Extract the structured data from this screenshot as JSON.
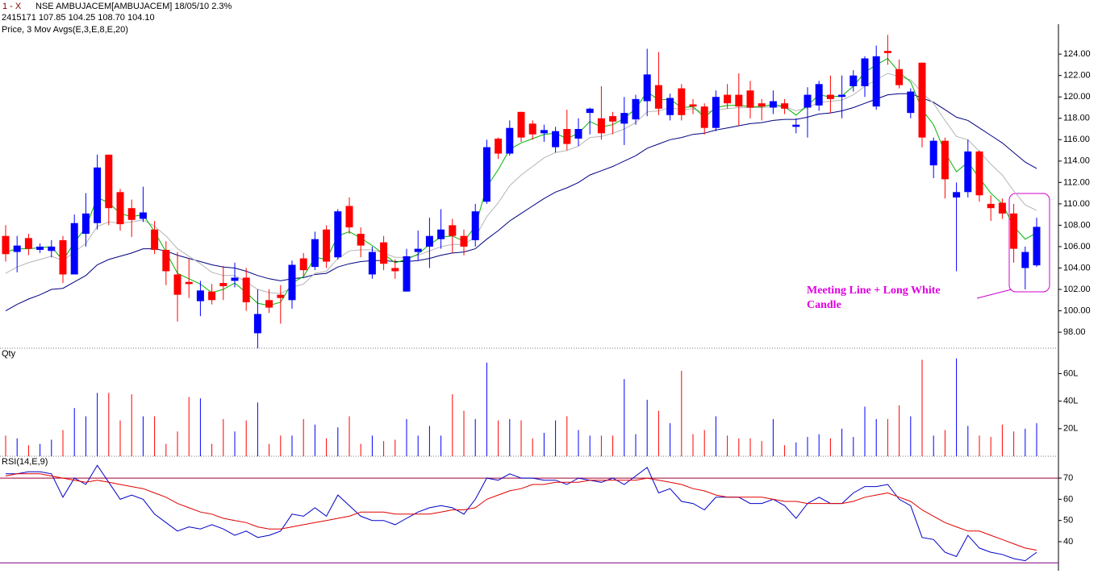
{
  "header": {
    "tab": "1 - X",
    "symbol": "NSE AMBUJACEM[AMBUJACEM] 18/05/10  2.3%",
    "quote": "2415171 107.85 104.25 108.70 104.10"
  },
  "annotation": "Meeting Line + Long White Candle",
  "chart_data": [
    {
      "type": "candlestick",
      "title": "Price, 3 Mov Avgs(E,3,E,8,E,20)",
      "up_color": "#0000ff",
      "down_color": "#ff0000",
      "open": [
        107.0,
        105.5,
        106.8,
        105.7,
        105.6,
        106.6,
        103.4,
        107.2,
        108.2,
        114.6,
        111.1,
        109.6,
        108.6,
        107.6,
        105.7,
        103.4,
        102.7,
        100.9,
        101.8,
        102.6,
        102.8,
        103.1,
        97.9,
        101.0,
        101.5,
        101.0,
        104.9,
        104.1,
        107.6,
        105.0,
        109.8,
        107.2,
        103.4,
        106.4,
        104.0,
        101.8,
        105.5,
        106.0,
        106.7,
        108.0,
        107.0,
        106.6,
        110.2,
        116.1,
        114.7,
        118.6,
        117.5,
        116.6,
        115.3,
        117.0,
        116.1,
        118.5,
        118.0,
        118.2,
        117.5,
        117.9,
        119.6,
        121.1,
        118.3,
        120.8,
        119.3,
        119.1,
        117.1,
        120.2,
        120.2,
        120.6,
        119.4,
        119.0,
        119.4,
        117.2,
        119.0,
        119.2,
        120.2,
        120.0,
        121.0,
        121.0,
        119.1,
        124.3,
        122.6,
        118.5,
        123.2,
        113.6,
        115.9,
        110.6,
        111.1,
        114.9,
        110.0,
        110.1,
        109.1,
        104.0,
        104.25
      ],
      "high": [
        108.0,
        107.0,
        107.2,
        106.3,
        106.6,
        107.0,
        109.0,
        111.0,
        114.6,
        114.6,
        111.4,
        110.4,
        111.6,
        108.4,
        106.5,
        105.5,
        104.9,
        102.8,
        102.5,
        104.2,
        104.5,
        104.0,
        102.0,
        102.0,
        102.4,
        104.7,
        105.4,
        107.4,
        108.0,
        109.5,
        110.6,
        107.8,
        106.0,
        107.0,
        104.8,
        105.8,
        107.5,
        108.7,
        109.5,
        108.6,
        107.6,
        110.0,
        116.0,
        116.2,
        117.8,
        118.6,
        117.8,
        117.4,
        117.2,
        118.8,
        118.0,
        119.0,
        121.0,
        118.6,
        120.0,
        120.2,
        124.5,
        124.2,
        120.3,
        121.2,
        119.8,
        119.4,
        120.6,
        121.2,
        122.2,
        121.5,
        119.8,
        120.6,
        119.8,
        118.0,
        120.9,
        121.5,
        122.0,
        122.0,
        122.5,
        123.8,
        124.8,
        125.8,
        123.5,
        120.8,
        123.2,
        116.2,
        116.2,
        112.0,
        116.0,
        115.0,
        110.8,
        110.5,
        110.0,
        106.0,
        108.7
      ],
      "low": [
        104.6,
        103.6,
        105.2,
        105.4,
        105.0,
        102.6,
        103.4,
        106.0,
        107.6,
        108.0,
        107.5,
        106.9,
        108.3,
        105.3,
        102.4,
        99.0,
        101.2,
        99.5,
        100.6,
        101.0,
        102.2,
        100.0,
        96.5,
        99.8,
        98.8,
        100.2,
        103.2,
        103.8,
        104.0,
        104.8,
        107.2,
        105.0,
        103.0,
        103.8,
        103.0,
        101.8,
        104.7,
        104.0,
        105.8,
        105.4,
        105.2,
        106.0,
        110.0,
        114.2,
        114.5,
        115.8,
        116.0,
        115.8,
        114.8,
        115.0,
        115.4,
        116.5,
        116.0,
        116.5,
        115.5,
        117.4,
        118.2,
        118.3,
        117.8,
        117.8,
        118.4,
        116.5,
        116.8,
        118.9,
        117.3,
        118.0,
        117.8,
        118.4,
        118.4,
        116.6,
        116.2,
        118.7,
        118.5,
        118.0,
        120.5,
        120.0,
        118.8,
        123.0,
        120.8,
        118.0,
        115.3,
        112.4,
        110.5,
        103.7,
        110.6,
        110.2,
        108.4,
        108.6,
        104.5,
        102.0,
        104.1
      ],
      "close": [
        105.3,
        106.1,
        105.8,
        106.0,
        106.0,
        103.4,
        108.2,
        109.1,
        113.4,
        109.6,
        108.1,
        108.5,
        109.2,
        105.7,
        103.7,
        101.5,
        102.5,
        101.9,
        101.0,
        102.3,
        103.1,
        100.8,
        99.7,
        100.3,
        101.2,
        104.3,
        103.8,
        106.7,
        104.6,
        109.3,
        107.8,
        106.1,
        105.5,
        104.4,
        103.7,
        105.1,
        105.8,
        107.0,
        107.6,
        107.0,
        106.0,
        109.3,
        115.3,
        114.7,
        117.1,
        116.2,
        116.5,
        116.9,
        116.8,
        115.6,
        117.0,
        118.9,
        116.6,
        117.7,
        118.5,
        119.8,
        122.1,
        118.9,
        119.9,
        118.3,
        119.1,
        117.1,
        120.0,
        119.4,
        119.1,
        119.0,
        119.1,
        119.6,
        118.9,
        117.4,
        120.2,
        121.2,
        119.8,
        120.2,
        122.0,
        123.6,
        123.8,
        124.1,
        121.1,
        120.5,
        116.2,
        115.9,
        112.3,
        111.1,
        114.9,
        110.8,
        109.6,
        109.1,
        105.8,
        105.5,
        107.85
      ],
      "series": [
        {
          "color": "#00b400",
          "values": [
            105.5,
            105.8,
            105.8,
            105.9,
            106.0,
            104.7,
            106.4,
            107.8,
            110.6,
            110.1,
            109.1,
            108.8,
            109.0,
            107.4,
            105.5,
            103.5,
            103.0,
            102.5,
            101.7,
            102.0,
            102.6,
            101.7,
            100.7,
            100.5,
            100.8,
            102.6,
            103.2,
            105.0,
            104.8,
            107.0,
            107.4,
            106.8,
            106.1,
            105.3,
            104.5,
            104.8,
            105.3,
            106.2,
            106.9,
            107.0,
            106.5,
            107.9,
            111.6,
            113.2,
            115.1,
            115.7,
            116.1,
            116.5,
            116.6,
            116.1,
            116.6,
            117.7,
            117.2,
            117.4,
            118.0,
            118.9,
            120.5,
            119.7,
            119.8,
            119.0,
            119.1,
            118.1,
            119.0,
            119.2,
            119.2,
            119.1,
            119.1,
            119.3,
            119.1,
            118.3,
            119.2,
            120.2,
            120.0,
            120.1,
            121.0,
            122.3,
            123.0,
            123.6,
            122.3,
            121.4,
            118.8,
            117.4,
            114.8,
            113.0,
            113.9,
            112.4,
            111.0,
            110.0,
            107.9,
            106.7,
            107.3
          ]
        },
        {
          "color": "#b4b4b4",
          "values": [
            103.5,
            104.1,
            104.5,
            104.8,
            105.1,
            104.7,
            105.5,
            106.3,
            107.9,
            108.3,
            108.2,
            108.3,
            108.5,
            107.9,
            107.0,
            105.8,
            105.1,
            104.4,
            103.6,
            103.3,
            103.3,
            102.7,
            102.0,
            101.7,
            101.6,
            102.2,
            102.5,
            103.5,
            103.7,
            104.9,
            105.6,
            105.7,
            105.7,
            105.4,
            105.0,
            105.0,
            105.2,
            105.6,
            106.0,
            106.2,
            106.2,
            106.9,
            108.8,
            110.1,
            111.7,
            112.7,
            113.5,
            114.3,
            114.8,
            115.0,
            115.4,
            116.2,
            116.3,
            116.6,
            117.0,
            117.6,
            118.6,
            118.7,
            119.0,
            118.8,
            118.9,
            118.5,
            118.8,
            118.9,
            119.0,
            119.0,
            119.0,
            119.1,
            119.1,
            118.7,
            119.0,
            119.5,
            119.6,
            119.7,
            120.2,
            121.0,
            121.6,
            122.2,
            121.9,
            121.6,
            120.4,
            119.4,
            117.8,
            116.3,
            116.0,
            114.9,
            113.7,
            112.7,
            111.2,
            109.9,
            109.4
          ]
        },
        {
          "color": "#000080",
          "values": [
            100.0,
            100.6,
            101.1,
            101.5,
            102.0,
            102.1,
            102.7,
            103.3,
            104.3,
            104.8,
            105.1,
            105.4,
            105.8,
            105.8,
            105.6,
            105.2,
            104.9,
            104.6,
            104.3,
            104.1,
            104.0,
            103.7,
            103.3,
            103.0,
            102.8,
            103.0,
            103.1,
            103.4,
            103.5,
            104.1,
            104.4,
            104.6,
            104.7,
            104.7,
            104.6,
            104.6,
            104.7,
            104.9,
            105.2,
            105.4,
            105.5,
            105.8,
            106.7,
            107.5,
            108.4,
            109.1,
            109.8,
            110.5,
            111.1,
            111.5,
            112.0,
            112.7,
            113.1,
            113.5,
            114.0,
            114.5,
            115.2,
            115.6,
            116.0,
            116.2,
            116.5,
            116.6,
            116.9,
            117.1,
            117.3,
            117.5,
            117.6,
            117.8,
            117.9,
            117.9,
            118.1,
            118.4,
            118.5,
            118.7,
            119.0,
            119.4,
            119.8,
            120.2,
            120.3,
            120.3,
            119.9,
            119.5,
            118.8,
            118.1,
            117.8,
            117.1,
            116.4,
            115.7,
            114.8,
            113.9,
            113.3
          ]
        }
      ],
      "ylim": [
        96.5,
        126.8
      ],
      "yticks": [
        {
          "value": 98,
          "label": "98.00"
        },
        {
          "value": 100,
          "label": "100.00"
        },
        {
          "value": 102,
          "label": "102.00"
        },
        {
          "value": 104,
          "label": "104.00"
        },
        {
          "value": 106,
          "label": "106.00"
        },
        {
          "value": 108,
          "label": "108.00"
        },
        {
          "value": 110,
          "label": "110.00"
        },
        {
          "value": 112,
          "label": "112.00"
        },
        {
          "value": 114,
          "label": "114.00"
        },
        {
          "value": 116,
          "label": "116.00"
        },
        {
          "value": 118,
          "label": "118.00"
        },
        {
          "value": 120,
          "label": "120.00"
        },
        {
          "value": 122,
          "label": "122.00"
        },
        {
          "value": 124,
          "label": "124.00"
        }
      ]
    },
    {
      "type": "bar",
      "title": "Qty",
      "values": [
        15,
        13,
        8,
        9,
        12,
        19,
        35,
        29,
        46,
        46,
        26,
        45,
        29,
        29,
        9,
        18,
        43,
        42,
        9,
        27,
        18,
        26,
        39,
        9,
        15,
        15,
        27,
        23,
        13,
        21,
        29,
        9,
        15,
        11,
        12,
        27,
        15,
        22,
        15,
        45,
        33,
        27,
        68,
        26,
        27,
        26,
        13,
        17,
        26,
        29,
        19,
        15,
        15,
        15,
        56,
        16,
        41,
        33,
        24,
        62,
        16,
        19,
        29,
        15,
        13,
        13,
        11,
        27,
        8,
        10,
        14,
        16,
        13,
        20,
        14,
        36,
        27,
        27,
        37,
        29,
        70,
        15,
        19,
        71,
        22,
        15,
        14,
        23,
        18,
        20,
        24
      ],
      "ylim": [
        0,
        78.4
      ],
      "yticks": [
        {
          "value": 20,
          "label": "20L"
        },
        {
          "value": 40,
          "label": "40L"
        },
        {
          "value": 60,
          "label": "60L"
        }
      ]
    },
    {
      "type": "line",
      "title": "RSI(14,E,9)",
      "series": [
        {
          "color": "#0000c8",
          "values": [
            72,
            72,
            73,
            73,
            72,
            61,
            70,
            67,
            76,
            68,
            60,
            62,
            60,
            53,
            49,
            45,
            47,
            46,
            48,
            46,
            43,
            45,
            42,
            43,
            45,
            53,
            52,
            56,
            52,
            62,
            57,
            52,
            50,
            50,
            48,
            51,
            54,
            56,
            57,
            56,
            53,
            60,
            70,
            69,
            72,
            70,
            70,
            69,
            69,
            67,
            70,
            69,
            68,
            70,
            67,
            71,
            75,
            63,
            65,
            59,
            58,
            55,
            61,
            61,
            61,
            58,
            58,
            60,
            57,
            51,
            58,
            61,
            58,
            58,
            63,
            66,
            66,
            67,
            60,
            57,
            42,
            41,
            35,
            33,
            43,
            37,
            35,
            34,
            32,
            31,
            35
          ]
        },
        {
          "color": "#e00000",
          "values": [
            71,
            72,
            72,
            72,
            71,
            70,
            69,
            68,
            69,
            68,
            67,
            66,
            65,
            63,
            61,
            58,
            56,
            54,
            53,
            51,
            50,
            49,
            47,
            46,
            46,
            47,
            48,
            49,
            50,
            51,
            52,
            54,
            54,
            54,
            53,
            53,
            53,
            53,
            54,
            55,
            55,
            56,
            60,
            62,
            64,
            65,
            67,
            67,
            68,
            68,
            68,
            69,
            69,
            69,
            69,
            69,
            70,
            69,
            68,
            67,
            65,
            64,
            62,
            61,
            61,
            61,
            61,
            60,
            59,
            59,
            58,
            58,
            58,
            58,
            59,
            61,
            62,
            63,
            61,
            59,
            55,
            52,
            49,
            47,
            45,
            45,
            43,
            41,
            39,
            37,
            36
          ]
        }
      ],
      "hlines": [
        {
          "value": 70,
          "color": "#a00030"
        },
        {
          "value": 30,
          "color": "#800080"
        }
      ],
      "ylim": [
        26.3,
        80.3
      ],
      "yticks": [
        40,
        50,
        60,
        70
      ]
    }
  ]
}
